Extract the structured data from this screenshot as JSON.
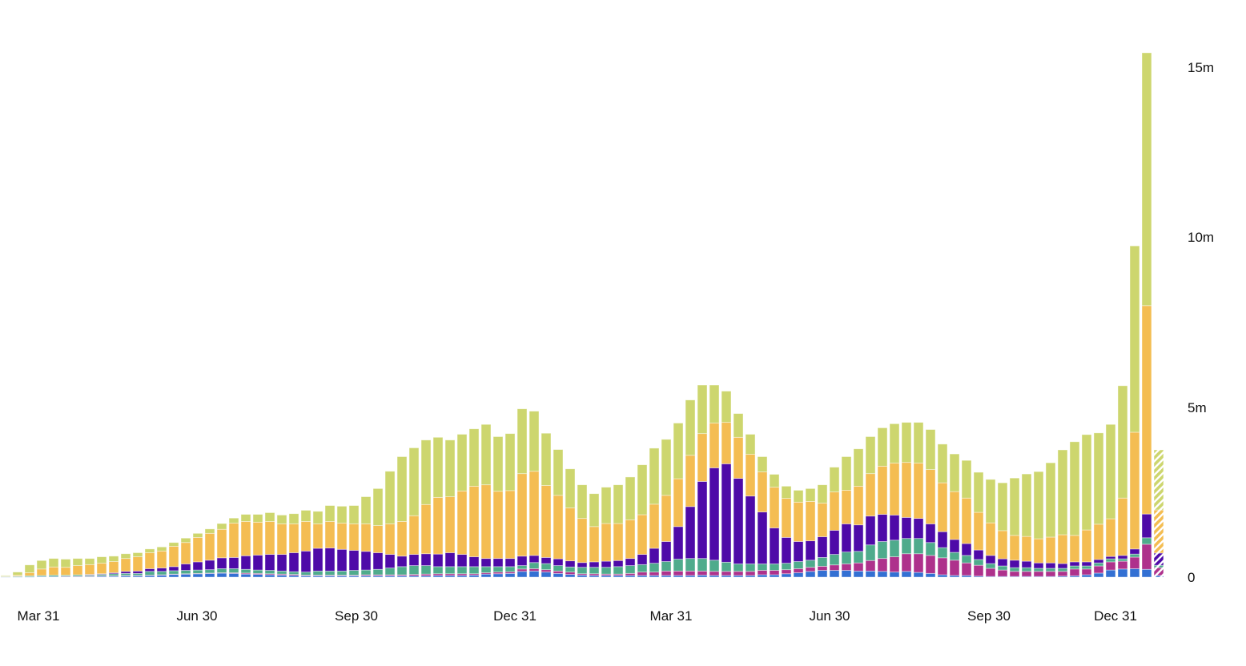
{
  "chart_data": {
    "type": "bar",
    "stacked": true,
    "title": "",
    "xlabel": "",
    "ylabel": "",
    "ylim": [
      0,
      15.5
    ],
    "y_unit": "m",
    "y_axis_position": "right",
    "grid": false,
    "legend": "none",
    "y_ticks": [
      {
        "value": 0,
        "label": "0"
      },
      {
        "value": 5,
        "label": "5m"
      },
      {
        "value": 10,
        "label": "10m"
      },
      {
        "value": 15,
        "label": "15m"
      }
    ],
    "x_ticks": [
      "Mar 31",
      "Jun 30",
      "Sep 30",
      "Dec 31",
      "Mar 31",
      "Jun 30",
      "Sep 30",
      "Dec 31"
    ],
    "last_bar_partial": true,
    "series": [
      {
        "color": "#3370d3",
        "values": [
          0.01,
          0.01,
          0.01,
          0.02,
          0.02,
          0.02,
          0.02,
          0.02,
          0.03,
          0.03,
          0.04,
          0.04,
          0.05,
          0.06,
          0.08,
          0.09,
          0.1,
          0.11,
          0.12,
          0.11,
          0.09,
          0.08,
          0.07,
          0.06,
          0.05,
          0.04,
          0.04,
          0.04,
          0.04,
          0.04,
          0.04,
          0.04,
          0.04,
          0.04,
          0.04,
          0.04,
          0.05,
          0.05,
          0.05,
          0.06,
          0.09,
          0.1,
          0.11,
          0.17,
          0.18,
          0.15,
          0.11,
          0.08,
          0.06,
          0.05,
          0.05,
          0.05,
          0.05,
          0.05,
          0.05,
          0.05,
          0.05,
          0.05,
          0.06,
          0.05,
          0.05,
          0.05,
          0.05,
          0.07,
          0.07,
          0.1,
          0.13,
          0.17,
          0.2,
          0.2,
          0.2,
          0.18,
          0.18,
          0.17,
          0.15,
          0.17,
          0.14,
          0.11,
          0.07,
          0.05,
          0.05,
          0.03,
          0.02,
          0.02,
          0.02,
          0.02,
          0.02,
          0.02,
          0.03,
          0.04,
          0.07,
          0.12,
          0.21,
          0.24,
          0.25,
          0.23,
          0.05
        ]
      },
      {
        "color": "#ae318c",
        "values": [
          0,
          0,
          0,
          0,
          0,
          0.01,
          0.01,
          0.01,
          0.01,
          0.01,
          0.01,
          0.01,
          0.01,
          0.01,
          0.01,
          0.01,
          0.01,
          0.01,
          0.01,
          0.02,
          0.03,
          0.03,
          0.03,
          0.03,
          0.03,
          0.02,
          0.02,
          0.02,
          0.02,
          0.02,
          0.03,
          0.03,
          0.03,
          0.03,
          0.04,
          0.05,
          0.05,
          0.05,
          0.05,
          0.04,
          0.04,
          0.05,
          0.05,
          0.07,
          0.07,
          0.07,
          0.07,
          0.07,
          0.04,
          0.05,
          0.04,
          0.04,
          0.06,
          0.1,
          0.1,
          0.13,
          0.13,
          0.13,
          0.12,
          0.12,
          0.12,
          0.12,
          0.12,
          0.13,
          0.13,
          0.12,
          0.12,
          0.12,
          0.12,
          0.16,
          0.19,
          0.24,
          0.31,
          0.38,
          0.45,
          0.52,
          0.55,
          0.53,
          0.5,
          0.45,
          0.37,
          0.32,
          0.24,
          0.19,
          0.15,
          0.15,
          0.15,
          0.15,
          0.14,
          0.2,
          0.17,
          0.21,
          0.24,
          0.23,
          0.34,
          0.74,
          0.23
        ]
      },
      {
        "color": "#4fab8c",
        "values": [
          0.01,
          0.02,
          0.03,
          0.03,
          0.04,
          0.03,
          0.04,
          0.03,
          0.04,
          0.06,
          0.06,
          0.06,
          0.11,
          0.1,
          0.1,
          0.1,
          0.1,
          0.1,
          0.12,
          0.12,
          0.11,
          0.1,
          0.1,
          0.09,
          0.08,
          0.09,
          0.12,
          0.12,
          0.12,
          0.14,
          0.14,
          0.16,
          0.2,
          0.24,
          0.26,
          0.25,
          0.21,
          0.21,
          0.21,
          0.21,
          0.18,
          0.16,
          0.15,
          0.1,
          0.18,
          0.18,
          0.16,
          0.15,
          0.19,
          0.19,
          0.2,
          0.22,
          0.23,
          0.22,
          0.26,
          0.28,
          0.35,
          0.37,
          0.37,
          0.33,
          0.27,
          0.22,
          0.22,
          0.19,
          0.19,
          0.19,
          0.21,
          0.21,
          0.26,
          0.31,
          0.35,
          0.34,
          0.46,
          0.5,
          0.49,
          0.45,
          0.45,
          0.38,
          0.3,
          0.23,
          0.22,
          0.17,
          0.14,
          0.12,
          0.11,
          0.11,
          0.09,
          0.09,
          0.09,
          0.09,
          0.09,
          0.09,
          0.09,
          0.07,
          0.09,
          0.19,
          0.07
        ]
      },
      {
        "color": "#4e0aa8",
        "values": [
          0,
          0,
          0,
          0,
          0,
          0,
          0,
          0.02,
          0.02,
          0.03,
          0.06,
          0.07,
          0.08,
          0.1,
          0.12,
          0.19,
          0.24,
          0.28,
          0.32,
          0.33,
          0.4,
          0.44,
          0.47,
          0.49,
          0.56,
          0.62,
          0.67,
          0.68,
          0.64,
          0.59,
          0.55,
          0.49,
          0.4,
          0.31,
          0.33,
          0.35,
          0.37,
          0.41,
          0.36,
          0.29,
          0.24,
          0.24,
          0.24,
          0.28,
          0.21,
          0.18,
          0.2,
          0.18,
          0.14,
          0.16,
          0.18,
          0.18,
          0.21,
          0.3,
          0.44,
          0.59,
          0.96,
          1.53,
          2.27,
          2.72,
          2.9,
          2.52,
          2.0,
          1.53,
          1.06,
          0.76,
          0.59,
          0.57,
          0.61,
          0.71,
          0.83,
          0.78,
          0.85,
          0.8,
          0.74,
          0.62,
          0.59,
          0.55,
          0.47,
          0.38,
          0.35,
          0.28,
          0.24,
          0.21,
          0.22,
          0.19,
          0.16,
          0.16,
          0.14,
          0.12,
          0.12,
          0.1,
          0.07,
          0.1,
          0.15,
          0.7,
          0.36
        ]
      },
      {
        "color": "#f4bd52",
        "values": [
          0.01,
          0.03,
          0.09,
          0.19,
          0.24,
          0.23,
          0.27,
          0.29,
          0.31,
          0.33,
          0.38,
          0.42,
          0.47,
          0.5,
          0.6,
          0.63,
          0.72,
          0.79,
          0.84,
          1.01,
          1.01,
          0.97,
          0.97,
          0.9,
          0.85,
          0.87,
          0.72,
          0.78,
          0.77,
          0.78,
          0.81,
          0.8,
          0.9,
          1.02,
          1.14,
          1.45,
          1.67,
          1.65,
          1.87,
          2.08,
          2.17,
          1.98,
          2.0,
          2.43,
          2.48,
          2.12,
          1.87,
          1.56,
          1.3,
          1.04,
          1.11,
          1.09,
          1.14,
          1.17,
          1.3,
          1.36,
          1.41,
          1.51,
          1.41,
          1.32,
          1.22,
          1.21,
          1.23,
          1.18,
          1.2,
          1.15,
          1.16,
          1.16,
          0.99,
          1.13,
          0.99,
          1.14,
          1.25,
          1.42,
          1.53,
          1.62,
          1.63,
          1.6,
          1.44,
          1.41,
          1.34,
          1.11,
          0.96,
          0.83,
          0.73,
          0.73,
          0.71,
          0.76,
          0.85,
          0.78,
          0.94,
          1.04,
          1.11,
          1.69,
          3.44,
          6.14,
          1.27
        ]
      },
      {
        "color": "#cdd66e",
        "values": [
          0.02,
          0.09,
          0.23,
          0.25,
          0.25,
          0.24,
          0.21,
          0.18,
          0.19,
          0.16,
          0.14,
          0.12,
          0.11,
          0.12,
          0.11,
          0.13,
          0.12,
          0.13,
          0.17,
          0.15,
          0.21,
          0.23,
          0.26,
          0.26,
          0.3,
          0.33,
          0.37,
          0.47,
          0.5,
          0.54,
          0.8,
          1.09,
          1.55,
          1.91,
          2.0,
          1.9,
          1.77,
          1.67,
          1.67,
          1.69,
          1.78,
          1.61,
          1.68,
          1.91,
          1.77,
          1.54,
          1.35,
          1.15,
          0.99,
          0.97,
          1.07,
          1.14,
          1.26,
          1.47,
          1.65,
          1.65,
          1.64,
          1.63,
          1.43,
          1.12,
          0.92,
          0.7,
          0.59,
          0.45,
          0.38,
          0.36,
          0.35,
          0.38,
          0.54,
          0.73,
          0.99,
          1.1,
          1.09,
          1.13,
          1.16,
          1.18,
          1.2,
          1.18,
          1.14,
          1.11,
          1.11,
          1.18,
          1.28,
          1.41,
          1.69,
          1.84,
          1.98,
          2.19,
          2.5,
          2.76,
          2.81,
          2.69,
          2.78,
          3.31,
          5.49,
          7.45,
          1.77
        ]
      }
    ]
  }
}
